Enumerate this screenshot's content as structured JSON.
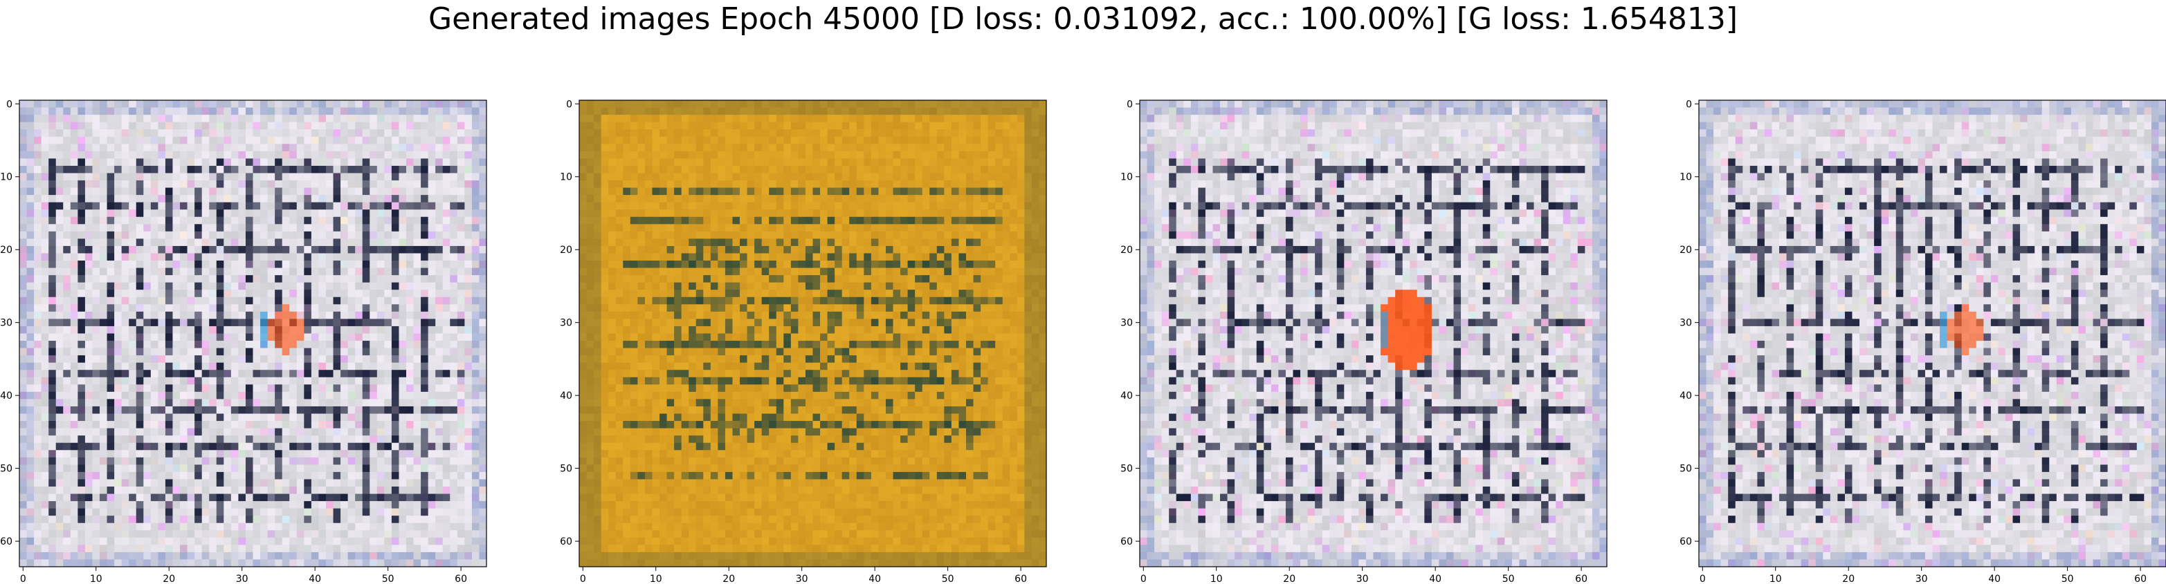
{
  "figure": {
    "title": "Generated images Epoch 45000 [D loss: 0.031092, acc.: 100.00%] [G loss: 1.654813]"
  },
  "axes": {
    "x_ticks": [
      "0",
      "10",
      "20",
      "30",
      "40",
      "50",
      "60"
    ],
    "y_ticks": [
      "0",
      "10",
      "20",
      "30",
      "40",
      "50",
      "60"
    ],
    "range": [
      0,
      63
    ]
  },
  "panels": [
    {
      "name": "generated-image-1",
      "style": "grey-grid",
      "hotspot": "mild"
    },
    {
      "name": "generated-image-2",
      "style": "amber-stripes",
      "hotspot": "none"
    },
    {
      "name": "generated-image-3",
      "style": "grey-grid",
      "hotspot": "strong"
    },
    {
      "name": "generated-image-4",
      "style": "grey-grid",
      "hotspot": "mild"
    }
  ],
  "colors": {
    "grid_base": "#cfd0d4",
    "grid_dark": "#1a1f3a",
    "grid_light": "#f4eef8",
    "amber_base": "#c4881a",
    "amber_light": "#e8b02a",
    "amber_dark": "#2d4a3a",
    "hotspot": "#ff5a1a",
    "hotspot_blue": "#3aa0e0"
  }
}
